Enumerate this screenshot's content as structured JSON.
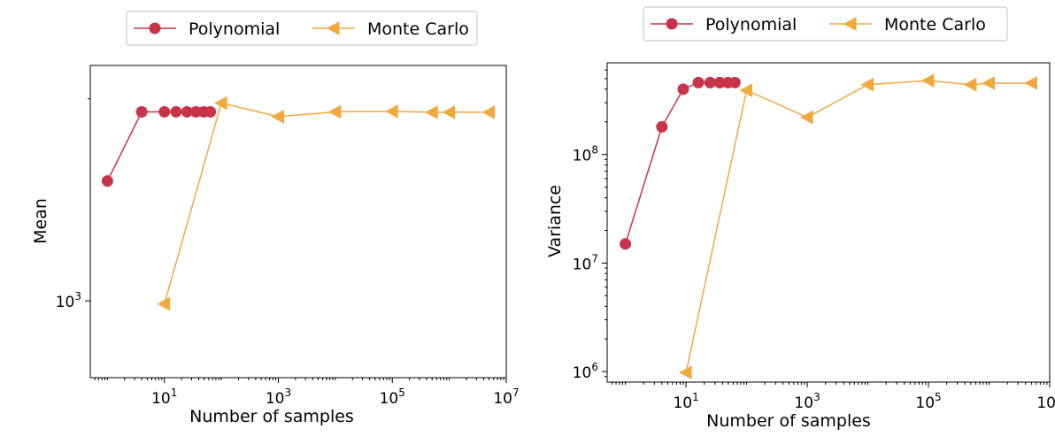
{
  "chart_data": [
    {
      "type": "line",
      "title": "",
      "xlabel": "Number of samples",
      "ylabel": "Mean",
      "xscale": "log",
      "yscale": "log",
      "xlim": [
        0.5,
        10000000
      ],
      "ylim": [
        880,
        1480
      ],
      "x_ticks": [
        {
          "base": "10",
          "exp": "1",
          "value": 10
        },
        {
          "base": "10",
          "exp": "3",
          "value": 1000
        },
        {
          "base": "10",
          "exp": "5",
          "value": 100000
        },
        {
          "base": "10",
          "exp": "7",
          "value": 10000000
        }
      ],
      "y_ticks": [
        {
          "base": "10",
          "exp": "3",
          "value": 1000
        }
      ],
      "y_minor_ticks": [
        1400
      ],
      "legend": {
        "placement": "top-center",
        "entries": [
          "Polynomial",
          "Monte Carlo"
        ]
      },
      "series": [
        {
          "name": "Polynomial",
          "marker": "circle",
          "color": "#c9334a",
          "x": [
            1,
            4,
            10,
            16,
            25,
            36,
            49,
            64
          ],
          "y": [
            1221,
            1370,
            1370,
            1370,
            1370,
            1370,
            1370,
            1370
          ]
        },
        {
          "name": "Monte Carlo",
          "marker": "triangle-left",
          "color": "#f0a93e",
          "x": [
            10,
            100,
            1000,
            10000,
            100000,
            500000,
            1000000,
            5000000
          ],
          "y": [
            995,
            1390,
            1359,
            1370,
            1371,
            1369,
            1369,
            1369
          ]
        }
      ]
    },
    {
      "type": "line",
      "title": "",
      "xlabel": "Number of samples",
      "ylabel": "Variance",
      "xscale": "log",
      "yscale": "log",
      "xlim": [
        0.5,
        10000000
      ],
      "ylim": [
        800000,
        700000000
      ],
      "x_ticks": [
        {
          "base": "10",
          "exp": "1",
          "value": 10
        },
        {
          "base": "10",
          "exp": "3",
          "value": 1000
        },
        {
          "base": "10",
          "exp": "5",
          "value": 100000
        },
        {
          "base": "10",
          "exp": "7",
          "value": 10000000
        }
      ],
      "y_ticks": [
        {
          "base": "10",
          "exp": "6",
          "value": 1000000
        },
        {
          "base": "10",
          "exp": "7",
          "value": 10000000
        },
        {
          "base": "10",
          "exp": "8",
          "value": 100000000
        }
      ],
      "legend": {
        "placement": "top-center",
        "entries": [
          "Polynomial",
          "Monte Carlo"
        ]
      },
      "series": [
        {
          "name": "Polynomial",
          "marker": "circle",
          "color": "#c9334a",
          "x": [
            1,
            4,
            9,
            16,
            25,
            36,
            49,
            64
          ],
          "y": [
            15000000,
            180000000,
            400000000,
            460000000,
            460000000,
            460000000,
            460000000,
            460000000
          ]
        },
        {
          "name": "Monte Carlo",
          "marker": "triangle-left",
          "color": "#f0a93e",
          "x": [
            10,
            100,
            1000,
            10000,
            100000,
            500000,
            1000000,
            5000000
          ],
          "y": [
            980000,
            390000000,
            220000000,
            440000000,
            480000000,
            440000000,
            455000000,
            455000000
          ]
        }
      ]
    }
  ]
}
